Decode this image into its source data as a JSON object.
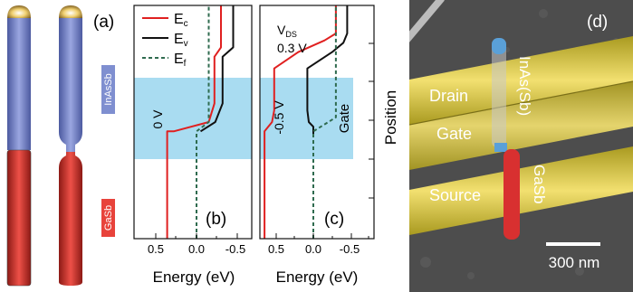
{
  "panels": {
    "a": {
      "label": "(a)",
      "upper_material": "InAsSb",
      "lower_material": "GaSb",
      "colors": {
        "upper": "#7f8fd0",
        "lower": "#d8322c",
        "tip": "#e2c060"
      }
    },
    "b": {
      "label": "(b)",
      "gate_voltage": "0 V"
    },
    "c": {
      "label": "(c)",
      "gate_voltage": "-0.5 V",
      "gate_label": "Gate",
      "vds_main": "V",
      "vds_sub": "DS",
      "vds_value": "0.3 V"
    },
    "d": {
      "label": "(d)",
      "labels": {
        "drain": "Drain",
        "gate": "Gate",
        "source": "Source",
        "upper_wire": "InAs(Sb)",
        "lower_wire": "GaSb"
      },
      "scale_bar": "300 nm",
      "colors": {
        "metal": "#d8c84a",
        "wire_top": "#5aa0d8",
        "wire_bottom": "#d83030"
      }
    }
  },
  "legend": [
    {
      "main": "E",
      "sub": "c",
      "color": "#e02020",
      "style": "solid"
    },
    {
      "main": "E",
      "sub": "v",
      "color": "#111111",
      "style": "solid"
    },
    {
      "main": "E",
      "sub": "f",
      "color": "#2f6b4f",
      "style": "dashed"
    }
  ],
  "axes": {
    "x_label": "Energy (eV)",
    "y_label": "Position",
    "x_ticks_b": [
      "0.5",
      "0.0",
      "-0.5"
    ],
    "x_ticks_c": [
      "0.5",
      "0.0",
      "-0.5"
    ]
  },
  "colors": {
    "gate_region": "#a9dcf1"
  },
  "chart_data": [
    {
      "type": "line",
      "panel": "b",
      "title": "",
      "xlabel": "Energy (eV)",
      "ylabel": "Position",
      "xlim": [
        0.85,
        -0.85
      ],
      "ylim": [
        0,
        1
      ],
      "gate_region": [
        0.41,
        0.73
      ],
      "series": [
        {
          "name": "Ec",
          "points": [
            [
              0.36,
              0
            ],
            [
              0.36,
              0.46
            ],
            [
              0.28,
              0.46
            ],
            [
              -0.15,
              0.5
            ],
            [
              -0.22,
              0.58
            ],
            [
              -0.22,
              0.78
            ],
            [
              -0.3,
              0.82
            ],
            [
              -0.3,
              1.0
            ]
          ]
        },
        {
          "name": "Ev",
          "points": [
            [
              -0.05,
              0.46
            ],
            [
              -0.23,
              0.5
            ],
            [
              -0.32,
              0.58
            ],
            [
              -0.32,
              0.78
            ],
            [
              -0.45,
              0.82
            ],
            [
              -0.45,
              1.0
            ]
          ]
        },
        {
          "name": "Ef",
          "points": [
            [
              0.0,
              0
            ],
            [
              0.0,
              0.46
            ],
            [
              -0.15,
              0.5
            ],
            [
              -0.15,
              1.0
            ]
          ]
        }
      ]
    },
    {
      "type": "line",
      "panel": "c",
      "title": "",
      "xlabel": "Energy (eV)",
      "ylabel": "Position",
      "xlim": [
        0.85,
        -0.85
      ],
      "ylim": [
        0,
        1
      ],
      "gate_region": [
        0.41,
        0.73
      ],
      "series": [
        {
          "name": "Ec",
          "points": [
            [
              0.65,
              0
            ],
            [
              0.65,
              0.46
            ],
            [
              0.55,
              0.5
            ],
            [
              0.52,
              0.55
            ],
            [
              0.52,
              0.73
            ],
            [
              0.2,
              0.8
            ],
            [
              -0.15,
              0.85
            ],
            [
              -0.3,
              0.88
            ],
            [
              -0.3,
              1.0
            ]
          ]
        },
        {
          "name": "Ev",
          "points": [
            [
              0.0,
              0.44
            ],
            [
              0.0,
              0.48
            ],
            [
              0.06,
              0.5
            ],
            [
              0.08,
              0.55
            ],
            [
              0.08,
              0.73
            ],
            [
              -0.25,
              0.8
            ],
            [
              -0.4,
              0.84
            ],
            [
              -0.45,
              0.88
            ],
            [
              -0.45,
              1.0
            ]
          ]
        },
        {
          "name": "Ef",
          "points": [
            [
              0.0,
              0
            ],
            [
              0.0,
              0.46
            ],
            [
              -0.3,
              0.52
            ],
            [
              -0.3,
              1.0
            ]
          ]
        }
      ]
    }
  ]
}
